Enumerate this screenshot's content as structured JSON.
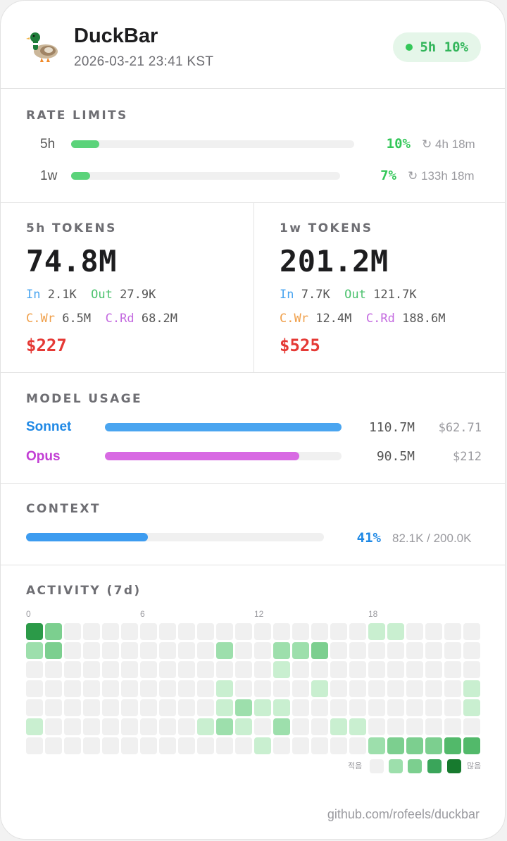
{
  "header": {
    "app_name": "DuckBar",
    "timestamp": "2026-03-21  23:41 KST",
    "badge_text": "5h 10%",
    "logo_icon": "duck-icon"
  },
  "rate_limits": {
    "label": "RATE LIMITS",
    "rows": [
      {
        "name": "5h",
        "percent_text": "10%",
        "percent": 10,
        "reset": "4h 18m",
        "icon": "refresh-icon"
      },
      {
        "name": "1w",
        "percent_text": "7%",
        "percent": 7,
        "reset": "133h 18m",
        "icon": "refresh-icon"
      }
    ]
  },
  "tokens": [
    {
      "label": "5h TOKENS",
      "total": "74.8M",
      "in_label": "In",
      "in": "2.1K",
      "out_label": "Out",
      "out": "27.9K",
      "cwr_label": "C.Wr",
      "cwr": "6.5M",
      "crd_label": "C.Rd",
      "crd": "68.2M",
      "cost": "$227"
    },
    {
      "label": "1w TOKENS",
      "total": "201.2M",
      "in_label": "In",
      "in": "7.7K",
      "out_label": "Out",
      "out": "121.7K",
      "cwr_label": "C.Wr",
      "cwr": "12.4M",
      "crd_label": "C.Rd",
      "crd": "188.6M",
      "cost": "$525"
    }
  ],
  "model_usage": {
    "label": "MODEL USAGE",
    "models": [
      {
        "name": "Sonnet",
        "tokens": "110.7M",
        "cost": "$62.71",
        "share": 100,
        "color": "#4aa5f0"
      },
      {
        "name": "Opus",
        "tokens": "90.5M",
        "cost": "$212",
        "share": 82,
        "color": "#d86ae3"
      }
    ]
  },
  "context": {
    "label": "CONTEXT",
    "percent_text": "41%",
    "percent": 41,
    "detail": "82.1K / 200.0K"
  },
  "activity": {
    "label": "ACTIVITY (7d)",
    "hour_labels": [
      "0",
      "6",
      "12",
      "18"
    ],
    "legend_low": "적음",
    "legend_high": "많음",
    "levels": [
      [
        5,
        3,
        0,
        0,
        0,
        0,
        0,
        0,
        0,
        0,
        0,
        0,
        0,
        0,
        0,
        0,
        0,
        0,
        1,
        1,
        0,
        0,
        0,
        0
      ],
      [
        2,
        3,
        0,
        0,
        0,
        0,
        0,
        0,
        0,
        0,
        2,
        0,
        0,
        2,
        2,
        3,
        0,
        0,
        0,
        0,
        0,
        0,
        0,
        0
      ],
      [
        0,
        0,
        0,
        0,
        0,
        0,
        0,
        0,
        0,
        0,
        0,
        0,
        0,
        1,
        0,
        0,
        0,
        0,
        0,
        0,
        0,
        0,
        0,
        0
      ],
      [
        0,
        0,
        0,
        0,
        0,
        0,
        0,
        0,
        0,
        0,
        1,
        0,
        0,
        0,
        0,
        1,
        0,
        0,
        0,
        0,
        0,
        0,
        0,
        1
      ],
      [
        0,
        0,
        0,
        0,
        0,
        0,
        0,
        0,
        0,
        0,
        1,
        2,
        1,
        1,
        0,
        0,
        0,
        0,
        0,
        0,
        0,
        0,
        0,
        1
      ],
      [
        1,
        0,
        0,
        0,
        0,
        0,
        0,
        0,
        0,
        1,
        2,
        1,
        0,
        2,
        0,
        0,
        1,
        1,
        0,
        0,
        0,
        0,
        0,
        0
      ],
      [
        0,
        0,
        0,
        0,
        0,
        0,
        0,
        0,
        0,
        0,
        0,
        0,
        1,
        0,
        0,
        0,
        0,
        0,
        2,
        3,
        3,
        3,
        4,
        4
      ]
    ],
    "palette": [
      "#f0f0f0",
      "#c9efd0",
      "#9ddfac",
      "#7ccf8f",
      "#52b96a",
      "#2b9a48",
      "#177a2e"
    ]
  },
  "footer": {
    "link": "github.com/rofeels/duckbar"
  }
}
